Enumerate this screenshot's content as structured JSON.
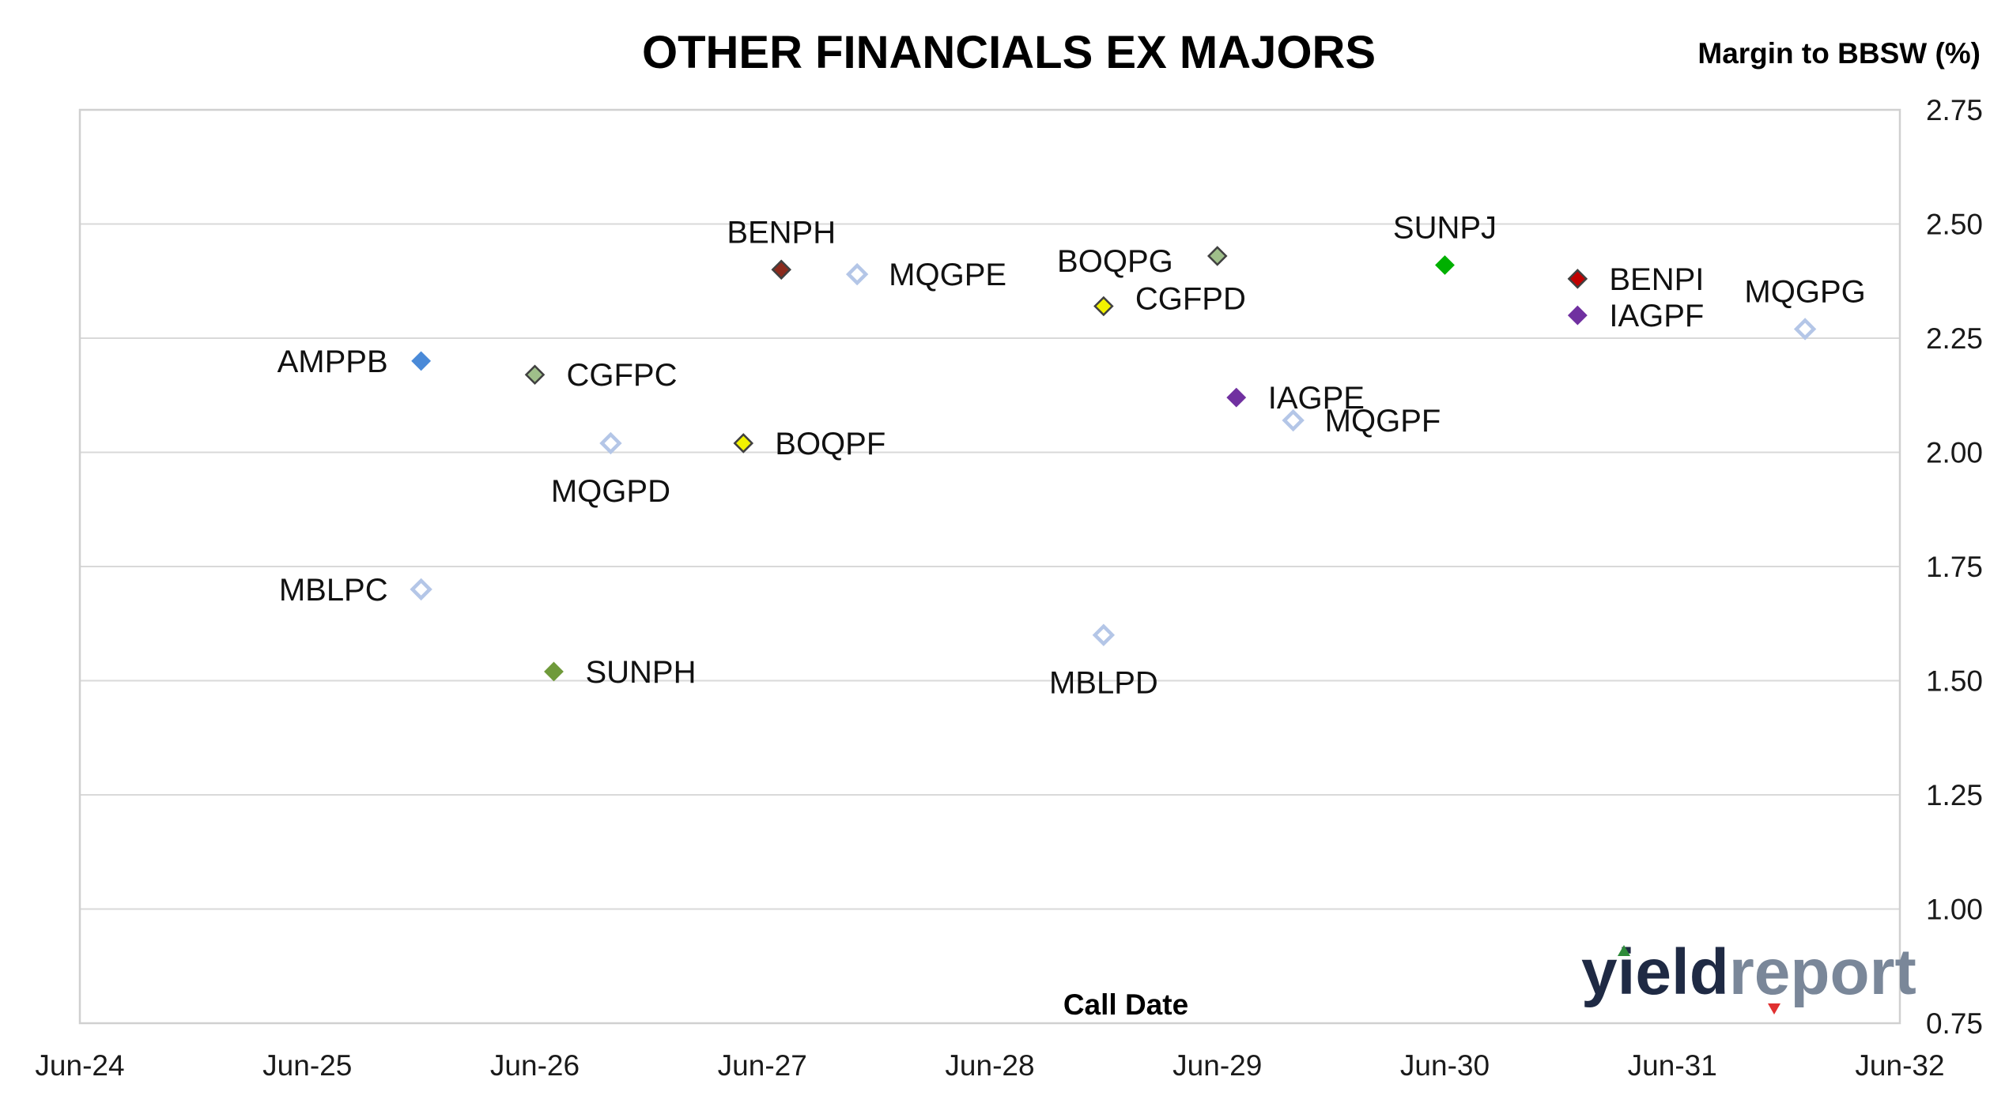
{
  "chart_data": {
    "type": "scatter",
    "title": "OTHER FINANCIALS EX MAJORS",
    "ylabel": "Margin to BBSW (%)",
    "xlabel": "Call Date",
    "x_axis": {
      "type": "date",
      "min": "2024-06",
      "max": "2032-06",
      "ticks": [
        "Jun-24",
        "Jun-25",
        "Jun-26",
        "Jun-27",
        "Jun-28",
        "Jun-29",
        "Jun-30",
        "Jun-31",
        "Jun-32"
      ]
    },
    "y_axis": {
      "position": "right",
      "ylim": [
        0.75,
        2.75
      ],
      "ticks": [
        "0.75",
        "1.00",
        "1.25",
        "1.50",
        "1.75",
        "2.00",
        "2.25",
        "2.50",
        "2.75"
      ]
    },
    "grid": "horizontal",
    "legend": "none",
    "points": [
      {
        "label": "AMPPB",
        "x": "2025-12",
        "y": 2.2,
        "color": "#4a8ad8",
        "marker": "filled"
      },
      {
        "label": "CGFPC",
        "x": "2026-06",
        "y": 2.17,
        "color": "#9fbf8a",
        "marker": "filled-outline"
      },
      {
        "label": "MQGPD",
        "x": "2026-10",
        "y": 2.02,
        "color": "#b4c6e7",
        "marker": "hollow"
      },
      {
        "label": "MBLPC",
        "x": "2025-12",
        "y": 1.7,
        "color": "#b4c6e7",
        "marker": "hollow"
      },
      {
        "label": "SUNPH",
        "x": "2026-07",
        "y": 1.52,
        "color": "#6f9a3a",
        "marker": "filled"
      },
      {
        "label": "BOQPF",
        "x": "2027-05",
        "y": 2.02,
        "color": "#f2f200",
        "marker": "filled-outline"
      },
      {
        "label": "BENPH",
        "x": "2027-07",
        "y": 2.4,
        "color": "#8b2a1c",
        "marker": "filled-outline"
      },
      {
        "label": "MQGPE",
        "x": "2027-11",
        "y": 2.39,
        "color": "#b4c6e7",
        "marker": "hollow"
      },
      {
        "label": "MBLPD",
        "x": "2028-12",
        "y": 1.6,
        "color": "#b4c6e7",
        "marker": "hollow"
      },
      {
        "label": "CGFPD",
        "x": "2028-12",
        "y": 2.32,
        "color": "#f2f200",
        "marker": "filled-outline"
      },
      {
        "label": "BOQPG",
        "x": "2029-06",
        "y": 2.43,
        "color": "#9fbf8a",
        "marker": "filled-outline"
      },
      {
        "label": "IAGPE",
        "x": "2029-07",
        "y": 2.12,
        "color": "#7030a0",
        "marker": "filled"
      },
      {
        "label": "MQGPF",
        "x": "2029-10",
        "y": 2.07,
        "color": "#b4c6e7",
        "marker": "hollow"
      },
      {
        "label": "SUNPJ",
        "x": "2030-06",
        "y": 2.41,
        "color": "#00b000",
        "marker": "filled"
      },
      {
        "label": "BENPI",
        "x": "2031-01",
        "y": 2.38,
        "color": "#c00000",
        "marker": "filled-outline"
      },
      {
        "label": "IAGPF",
        "x": "2031-01",
        "y": 2.3,
        "color": "#7030a0",
        "marker": "filled"
      },
      {
        "label": "MQGPG",
        "x": "2032-01",
        "y": 2.27,
        "color": "#b4c6e7",
        "marker": "hollow"
      }
    ]
  },
  "logo": {
    "part1": "yield",
    "part2": "report"
  }
}
